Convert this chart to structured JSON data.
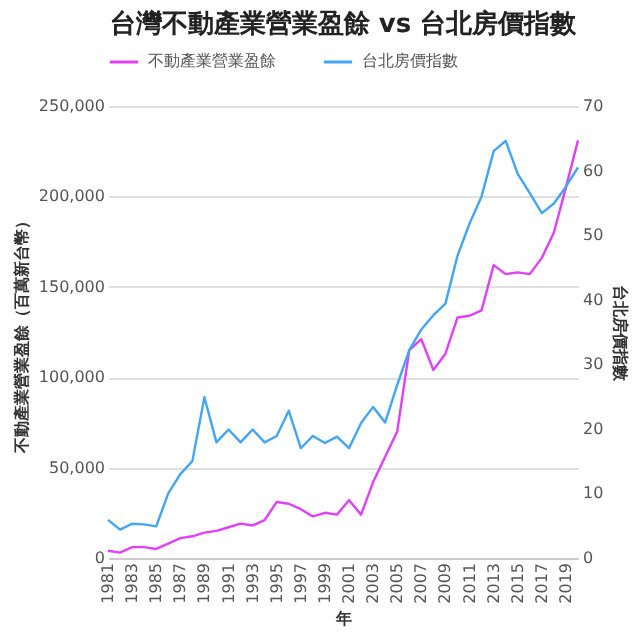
{
  "chart_data": {
    "type": "line",
    "title": "台灣不動產業營業盈餘 vs 台北房價指數",
    "xlabel": "年",
    "ylabel": "不動產業營業盈餘（百萬新台幣）",
    "y2label": "台北房價指數",
    "x": [
      1981,
      1982,
      1983,
      1984,
      1985,
      1986,
      1987,
      1988,
      1989,
      1990,
      1991,
      1992,
      1993,
      1994,
      1995,
      1996,
      1997,
      1998,
      1999,
      2000,
      2001,
      2002,
      2003,
      2004,
      2005,
      2006,
      2007,
      2008,
      2009,
      2010,
      2011,
      2012,
      2013,
      2014,
      2015,
      2016,
      2017,
      2018,
      2019,
      2020
    ],
    "series": [
      {
        "name": "不動產業營業盈餘",
        "color": "#e040fb",
        "values": [
          4000,
          3000,
          6000,
          6000,
          5000,
          8000,
          11000,
          12000,
          14000,
          15000,
          17000,
          19000,
          18000,
          21000,
          31000,
          30000,
          27000,
          23000,
          25000,
          24000,
          32000,
          24000,
          42000,
          56000,
          70000,
          115000,
          121000,
          104000,
          113000,
          133000,
          134000,
          137000,
          162000,
          157000,
          158000,
          157000,
          166000,
          180000,
          205000,
          231000
        ]
      },
      {
        "name": "台北房價指數",
        "color": "#42a5f5",
        "axis": "y2",
        "values": [
          5.9,
          4.4,
          5.3,
          5.2,
          4.9,
          10,
          13,
          15,
          24.9,
          17.9,
          19.9,
          17.9,
          19.9,
          17.9,
          18.9,
          22.8,
          17,
          18.9,
          17.8,
          18.8,
          17,
          20.9,
          23.4,
          21,
          26.8,
          32.2,
          35.4,
          37.6,
          39.4,
          46.8,
          51.8,
          56,
          63,
          64.6,
          59.5,
          56.5,
          53.4,
          54.9,
          57.5,
          60.5
        ]
      }
    ],
    "xlim": [
      1981,
      2020
    ],
    "xticks": [
      1981,
      1983,
      1985,
      1987,
      1989,
      1991,
      1993,
      1995,
      1997,
      1999,
      2001,
      2003,
      2005,
      2007,
      2009,
      2011,
      2013,
      2015,
      2017,
      2019
    ],
    "ylim": [
      0,
      250000
    ],
    "yticks": [
      0,
      {
        "value": 50000,
        "label": "50,000"
      },
      {
        "value": 100000,
        "label": "100,000"
      },
      {
        "value": 150000,
        "label": "150,000"
      },
      {
        "value": 200000,
        "label": "200,000"
      },
      {
        "value": 250000,
        "label": "250,000"
      }
    ],
    "y2lim": [
      0,
      70
    ],
    "y2ticks": [
      0,
      10,
      20,
      30,
      40,
      50,
      60,
      70
    ],
    "grid": "y",
    "legend": "top"
  }
}
